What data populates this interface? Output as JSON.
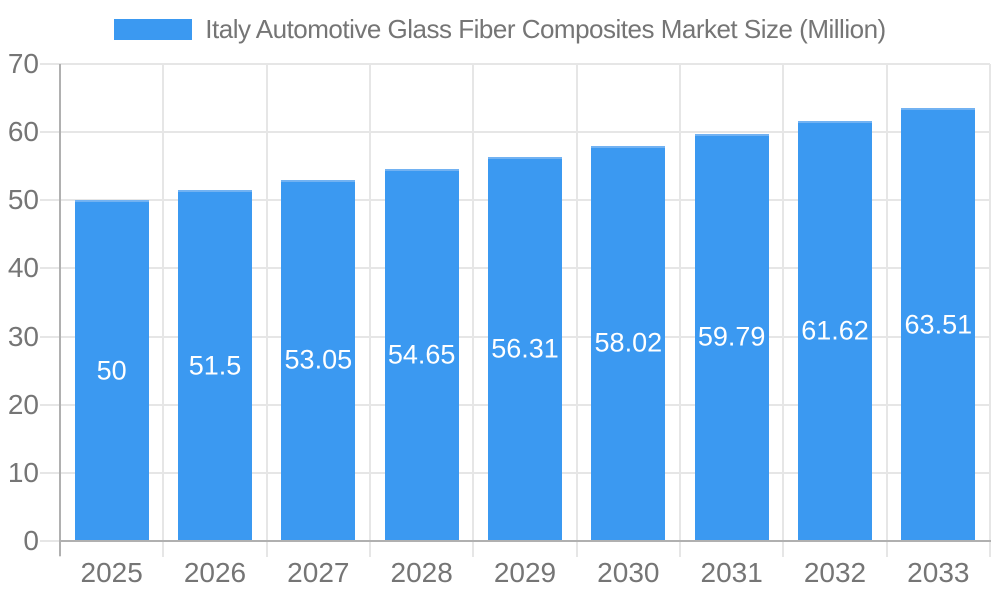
{
  "chart_data": {
    "type": "bar",
    "title": "Italy Automotive Glass Fiber Composites Market Size (Million)",
    "categories": [
      "2025",
      "2026",
      "2027",
      "2028",
      "2029",
      "2030",
      "2031",
      "2032",
      "2033"
    ],
    "values": [
      50,
      51.5,
      53.05,
      54.65,
      56.31,
      58.02,
      59.79,
      61.62,
      63.51
    ],
    "value_labels": [
      "50",
      "51.5",
      "53.05",
      "54.65",
      "56.31",
      "58.02",
      "59.79",
      "61.62",
      "63.51"
    ],
    "xlabel": "",
    "ylabel": "",
    "ylim": [
      0,
      70
    ],
    "yticks": [
      0,
      10,
      20,
      30,
      40,
      50,
      60,
      70
    ],
    "grid": true,
    "legend_position": "top",
    "value_label_position": "inside-middle",
    "colors": {
      "bar": "#3B99F1",
      "bar_top_edge": "#72B2F2",
      "gridline": "#E6E6E6",
      "tick": "#E6E6E6",
      "axis_line": "#B0B0B0",
      "axis_text": "#757575",
      "legend_text": "#757575",
      "value_label_text": "#FFFFFF",
      "background": "#FFFFFF"
    }
  }
}
